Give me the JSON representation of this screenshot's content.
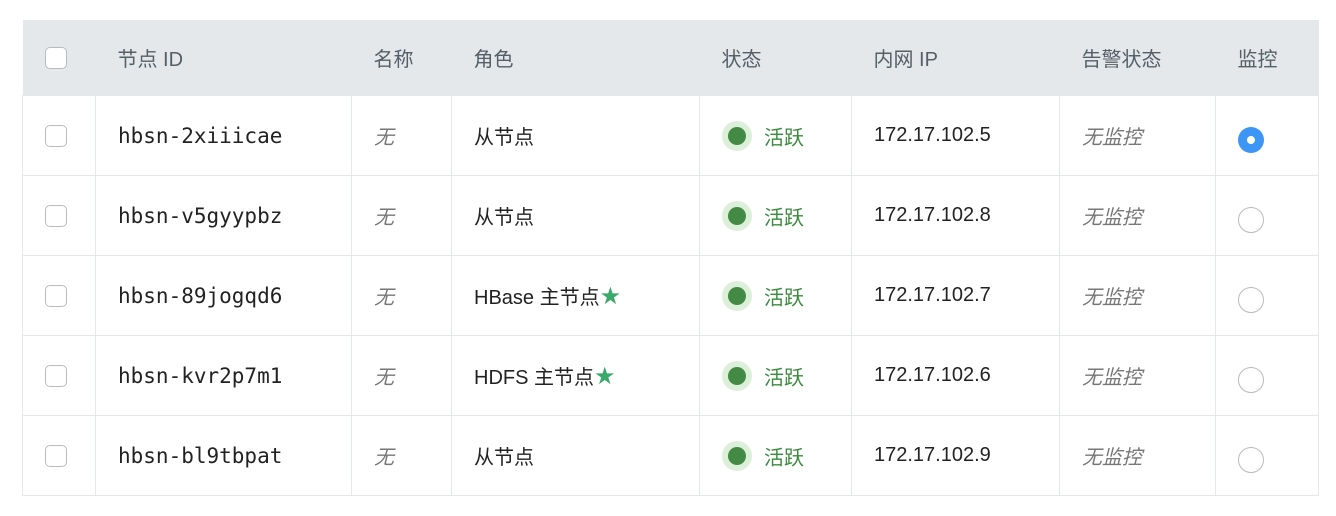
{
  "headers": [
    "节点 ID",
    "名称",
    "角色",
    "状态",
    "内网 IP",
    "告警状态",
    "监控"
  ],
  "rows": [
    {
      "id": "hbsn-2xiiicae",
      "name": "无",
      "role": "从节点",
      "star": false,
      "status": "活跃",
      "ip": "172.17.102.5",
      "alert": "无监控",
      "monitor": true
    },
    {
      "id": "hbsn-v5gyypbz",
      "name": "无",
      "role": "从节点",
      "star": false,
      "status": "活跃",
      "ip": "172.17.102.8",
      "alert": "无监控",
      "monitor": false
    },
    {
      "id": "hbsn-89jogqd6",
      "name": "无",
      "role": "HBase 主节点",
      "star": true,
      "status": "活跃",
      "ip": "172.17.102.7",
      "alert": "无监控",
      "monitor": false
    },
    {
      "id": "hbsn-kvr2p7m1",
      "name": "无",
      "role": "HDFS 主节点",
      "star": true,
      "status": "活跃",
      "ip": "172.17.102.6",
      "alert": "无监控",
      "monitor": false
    },
    {
      "id": "hbsn-bl9tbpat",
      "name": "无",
      "role": "从节点",
      "star": false,
      "status": "活跃",
      "ip": "172.17.102.9",
      "alert": "无监控",
      "monitor": false
    }
  ],
  "colors": {
    "header_bg": "#e4e8eb",
    "active": "#448a45",
    "radio_selected": "#3d95f5",
    "star": "#3aaa6a"
  },
  "icons": {
    "star": "star-icon",
    "status": "status-dot-icon"
  }
}
